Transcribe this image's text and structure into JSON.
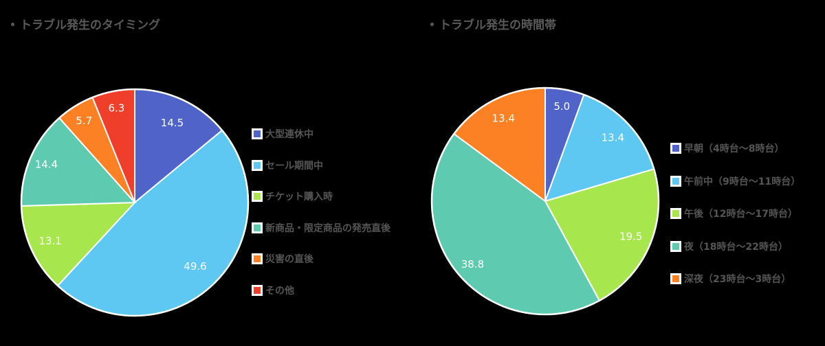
{
  "chart_data": [
    {
      "type": "pie",
      "title": "トラブル発生のタイミング",
      "categories": [
        "大型連休中",
        "セール期間中",
        "チケット購入時",
        "新商品・限定商品の発売直後",
        "災害の直後",
        "その他"
      ],
      "values": [
        14.5,
        49.6,
        13.1,
        14.4,
        5.7,
        6.3
      ],
      "value_labels": [
        "14.5",
        "49.6",
        "13.1",
        "14.4",
        "5.7",
        "6.3"
      ],
      "colors": [
        "#4f63c9",
        "#5ec8f2",
        "#a8e64e",
        "#5ecbb0",
        "#fb8124",
        "#ef3f2a"
      ],
      "start_angle": "12 o'clock",
      "direction": "clockwise",
      "legend_position": "right"
    },
    {
      "type": "pie",
      "title": "トラブル発生の時間帯",
      "categories": [
        "早朝（4時台～8時台）",
        "午前中（9時台～11時台）",
        "午後（12時台～17時台）",
        "夜（18時台～22時台）",
        "深夜（23時台～3時台）"
      ],
      "values": [
        5.0,
        13.4,
        19.5,
        38.8,
        13.4
      ],
      "value_labels": [
        "5.0",
        "13.4",
        "19.5",
        "38.8",
        "13.4"
      ],
      "colors": [
        "#4f63c9",
        "#5ec8f2",
        "#a8e64e",
        "#5ecbb0",
        "#fb8124"
      ],
      "start_angle": "12 o'clock",
      "direction": "clockwise",
      "legend_position": "right"
    }
  ],
  "left": {
    "title": "トラブル発生のタイミング",
    "legend": [
      "大型連休中",
      "セール期間中",
      "チケット購入時",
      "新商品・限定商品の発売直後",
      "災害の直後",
      "その他"
    ]
  },
  "right": {
    "title": "トラブル発生の時間帯",
    "legend": [
      "早朝（4時台～8時台）",
      "午前中（9時台～11時台）",
      "午後（12時台～17時台）",
      "夜（18時台～22時台）",
      "深夜（23時台～3時台）"
    ]
  }
}
